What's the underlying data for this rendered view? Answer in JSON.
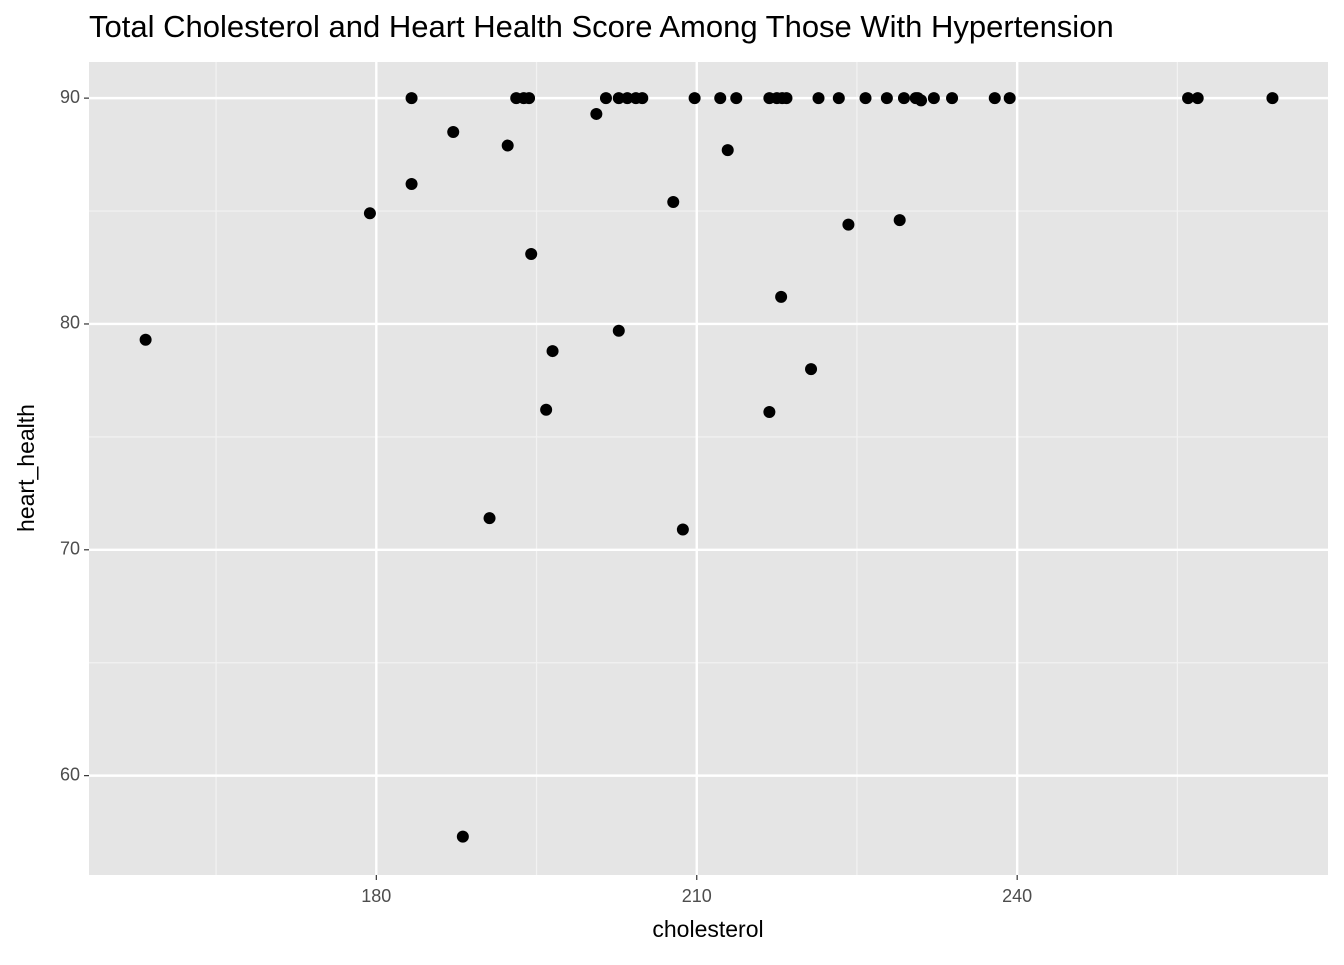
{
  "chart_data": {
    "type": "scatter",
    "title": "Total Cholesterol and Heart Health Score Among Those With Hypertension",
    "x_label": "cholesterol",
    "y_label": "heart_health",
    "xlim": [
      153.1,
      269.1
    ],
    "ylim": [
      55.6,
      91.6
    ],
    "xticks": [
      180,
      210,
      240
    ],
    "yticks": [
      60,
      70,
      80,
      90
    ],
    "x_minor_grid": [
      165,
      195,
      225,
      255
    ],
    "y_minor_grid": [
      65,
      75,
      85
    ],
    "grid": true,
    "color": "#000000",
    "x": [
      158.4,
      179.4,
      183.3,
      183.3,
      187.2,
      188.1,
      190.6,
      192.3,
      193.1,
      193.8,
      194.3,
      194.5,
      195.9,
      196.5,
      200.6,
      201.5,
      202.7,
      202.7,
      203.5,
      204.3,
      204.9,
      207.8,
      208.7,
      209.8,
      212.2,
      212.9,
      213.7,
      216.8,
      216.8,
      217.5,
      217.9,
      218.0,
      218.4,
      220.7,
      221.4,
      223.3,
      224.2,
      225.8,
      227.8,
      229.0,
      229.4,
      230.5,
      230.7,
      231.0,
      232.2,
      233.9,
      237.9,
      239.3,
      256.0,
      256.9,
      263.9
    ],
    "values": [
      79.3,
      84.9,
      90,
      86.2,
      88.5,
      57.3,
      71.4,
      87.9,
      90,
      90,
      90,
      83.1,
      76.2,
      78.8,
      89.3,
      90,
      79.7,
      90,
      90,
      90,
      90,
      85.4,
      70.9,
      90,
      90,
      87.7,
      90,
      76.1,
      90,
      90,
      81.2,
      90,
      90,
      78.0,
      90,
      90,
      84.4,
      90,
      90,
      84.6,
      90,
      90,
      90,
      89.9,
      90,
      90,
      90,
      90,
      90,
      90,
      90
    ]
  }
}
